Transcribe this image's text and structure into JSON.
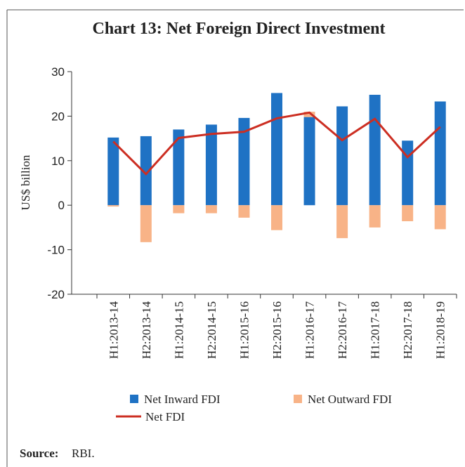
{
  "chart_data": {
    "type": "bar",
    "title": "Chart 13: Net Foreign Direct Investment",
    "y_label": "US$ billion",
    "source_label": "Source:",
    "source": "RBI.",
    "categories": [
      "H1:2013-14",
      "H2:2013-14",
      "H1:2014-15",
      "H2:2014-15",
      "H1:2015-16",
      "H2:2015-16",
      "H1:2016-17",
      "H2:2016-17",
      "H1:2017-18",
      "H2:2017-18",
      "H1:2018-19"
    ],
    "series": [
      {
        "name": "Net Inward FDI",
        "type": "bar",
        "color": "#1f72c4",
        "values": [
          15.2,
          15.5,
          17.0,
          18.1,
          19.6,
          25.2,
          19.8,
          22.2,
          24.8,
          14.5,
          23.3
        ]
      },
      {
        "name": "Net Outward FDI",
        "type": "bar",
        "color": "#f8b387",
        "values": [
          -0.3,
          -8.3,
          -1.8,
          -1.8,
          -2.8,
          -5.6,
          1.2,
          -7.4,
          -5.0,
          -3.6,
          -5.4
        ]
      },
      {
        "name": "Net FDI",
        "type": "line",
        "color": "#cc2e22",
        "values": [
          14.3,
          7.0,
          15.1,
          16.0,
          16.5,
          19.5,
          20.8,
          14.6,
          19.4,
          10.8,
          17.6
        ]
      }
    ],
    "ylim": [
      -20,
      30
    ],
    "yticks": [
      -20,
      -10,
      0,
      10,
      20,
      30
    ],
    "grid": false
  }
}
